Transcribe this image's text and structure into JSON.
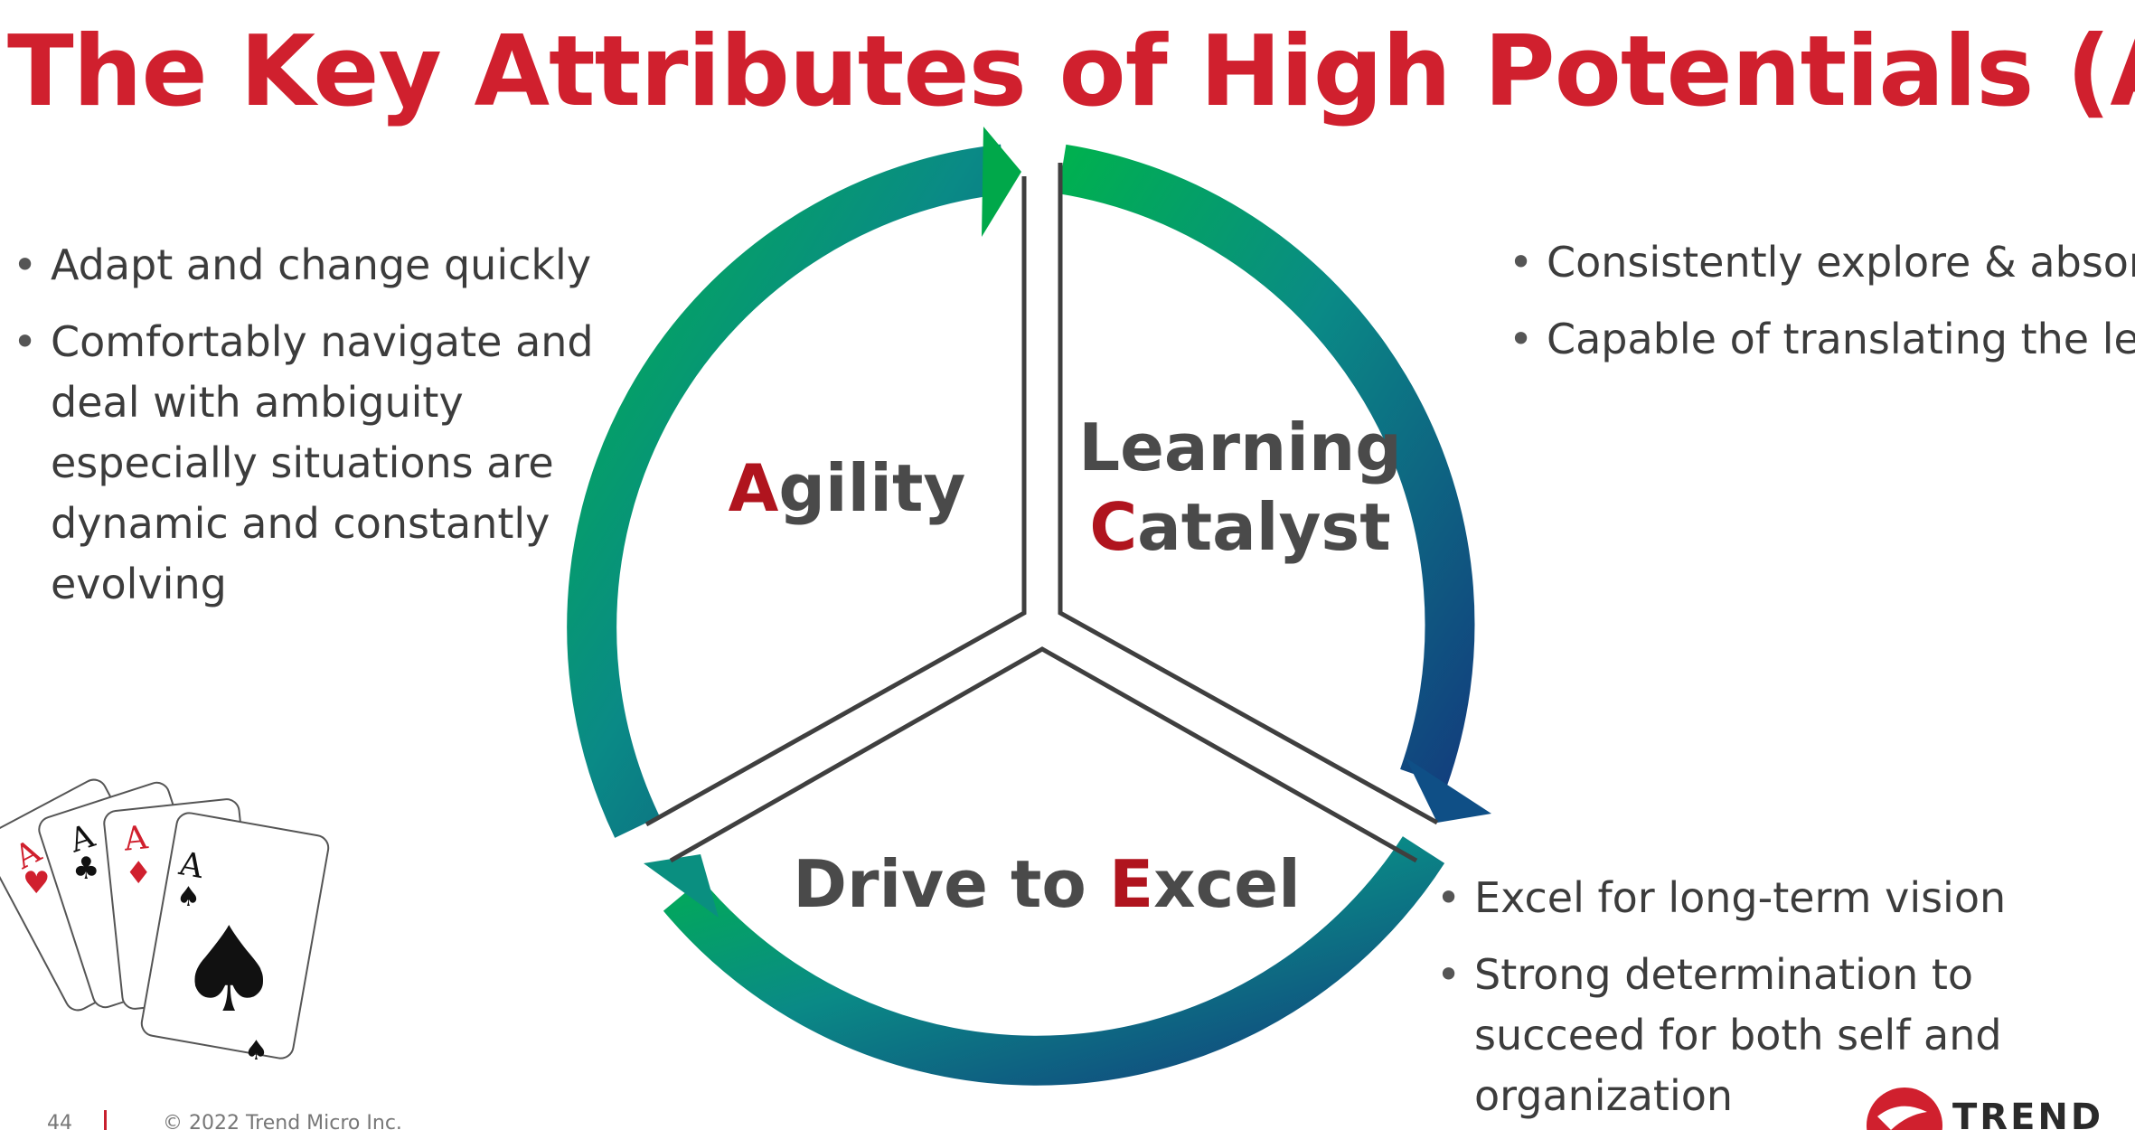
{
  "slide": {
    "title": "The Key Attributes of High Potentials (ACE)"
  },
  "segments": {
    "agility": {
      "initial": "A",
      "rest": "gility"
    },
    "learning": {
      "line1": "Learning",
      "initial": "C",
      "rest": "atalyst"
    },
    "drive": {
      "prefix": "Drive to ",
      "initial": "E",
      "rest": "xcel"
    }
  },
  "bullets": {
    "left": [
      "Adapt and change quickly",
      "Comfortably navigate and deal with ambiguity especially situations are dynamic and constantly evolving"
    ],
    "right": [
      "Consistently explore & absorb new ideas",
      "Capable of translating the learning into actions"
    ],
    "bottom": [
      "Excel for long-term vision",
      "Strong determination to succeed for both self and organization"
    ]
  },
  "footer": {
    "page_number": "44",
    "copyright": "© 2022 Trend Micro Inc."
  },
  "logo": {
    "text": "TREND"
  },
  "colors": {
    "title": "#d0202e",
    "initial": "#b0141e",
    "arrow_green": "#00a84a",
    "arrow_teal": "#0a8a86",
    "arrow_blue": "#104a84"
  },
  "icons": [
    "playing-cards-icon",
    "trend-micro-logo-icon"
  ],
  "cards": {
    "rank": "A",
    "suits": [
      "hearts",
      "clubs",
      "diamonds",
      "spades"
    ]
  }
}
